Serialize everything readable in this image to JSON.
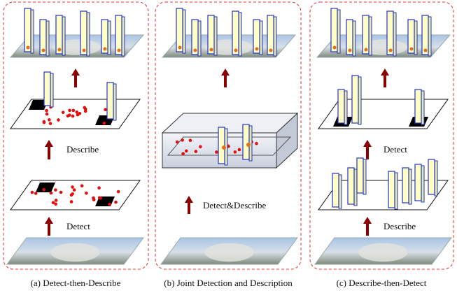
{
  "panels": [
    {
      "caption": "(a) Detect-then-Describe",
      "steps": [
        "Describe",
        "Detect"
      ]
    },
    {
      "caption": "(b) Joint Detection and Description",
      "steps": [
        "Detect&Describe"
      ]
    },
    {
      "caption": "(c) Describe-then-Detect",
      "steps": [
        "Detect",
        "Describe"
      ]
    }
  ]
}
